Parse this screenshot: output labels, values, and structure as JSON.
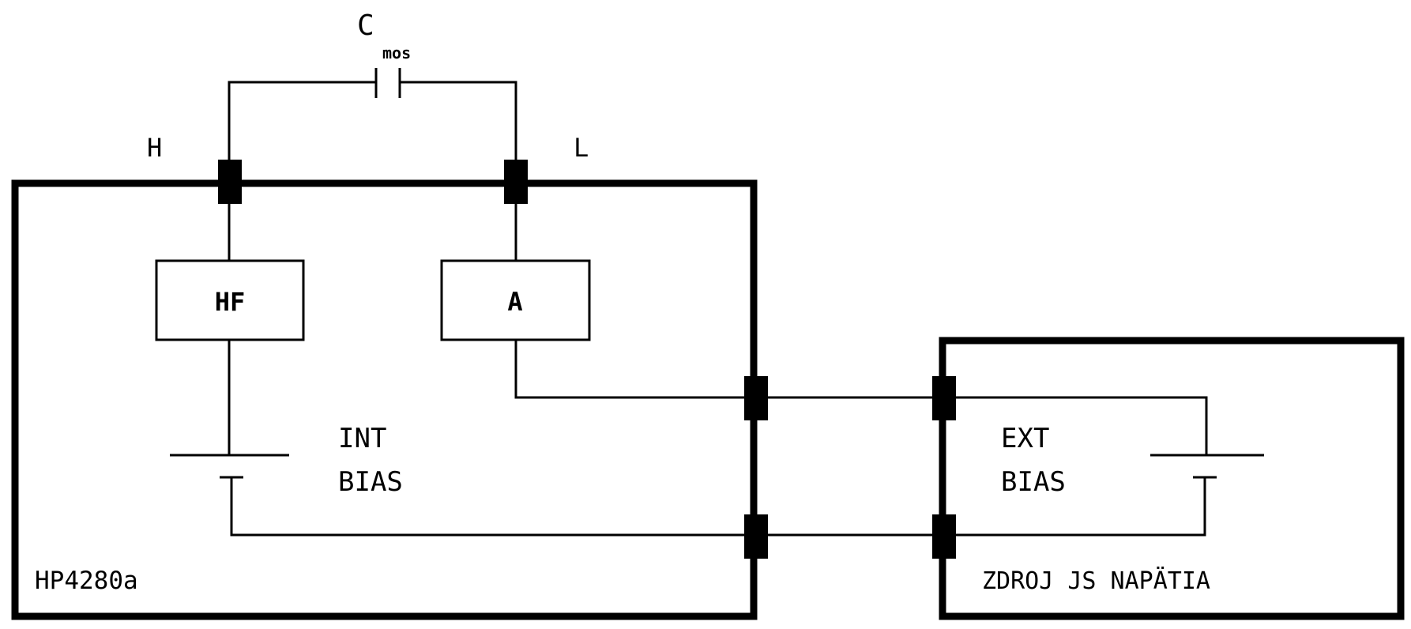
{
  "capacitor": {
    "symbol": "C",
    "subscript": "mos"
  },
  "terminals": {
    "high": "H",
    "low": "L"
  },
  "boxes": {
    "hf": "HF",
    "ammeter": "A"
  },
  "internal_bias": {
    "line1": "INT",
    "line2": "BIAS"
  },
  "external_bias": {
    "line1": "EXT",
    "line2": "BIAS"
  },
  "instrument_label": "HP4280a",
  "supply_label": "ZDROJ JS NAPÄTIA"
}
